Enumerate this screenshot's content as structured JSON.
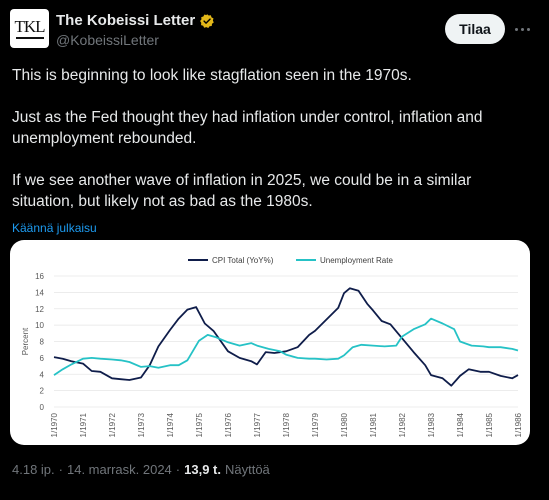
{
  "author": {
    "display_name": "The Kobeissi Letter",
    "handle": "@KobeissiLetter",
    "avatar_text": "TKL"
  },
  "header": {
    "follow_label": "Tilaa",
    "more_icon": "more-horizontal-icon"
  },
  "tweet": {
    "paragraphs": [
      "This is beginning to look like stagflation seen in the 1970s.",
      "Just as the Fed thought they had inflation under control, inflation and unemployment rebounded.",
      "If we see another wave of inflation in 2025, we could be in a similar situation, but likely not as bad as the 1980s."
    ],
    "translate_label": "Käännä julkaisu"
  },
  "meta": {
    "time": "4.18 ip.",
    "separator": "·",
    "date": "14. marrask. 2024",
    "separator2": "·",
    "views_count": "13,9 t.",
    "views_label": "Näyttöä"
  },
  "colors": {
    "cpi": "#0f1d4a",
    "unemployment": "#26c2c6",
    "link": "#1d9bf0"
  },
  "chart_data": {
    "type": "line",
    "ylabel": "Percent",
    "ylim": [
      0,
      16
    ],
    "yticks": [
      0,
      2,
      4,
      6,
      8,
      10,
      12,
      14,
      16
    ],
    "xlim": [
      1970,
      1986
    ],
    "xticks": [
      "1/1970",
      "1/1971",
      "1/1972",
      "1/1973",
      "1/1974",
      "1/1975",
      "1/1976",
      "1/1977",
      "1/1978",
      "1/1979",
      "1/1980",
      "1/1981",
      "1/1982",
      "1/1983",
      "1/1984",
      "1/1985",
      "1/1986"
    ],
    "legend_position": "top",
    "grid": "horizontal",
    "series": [
      {
        "name": "CPI Total (YoY%)",
        "x": [
          1970,
          1970.3,
          1970.6,
          1971,
          1971.3,
          1971.6,
          1972,
          1972.3,
          1972.6,
          1973,
          1973.3,
          1973.6,
          1974,
          1974.3,
          1974.6,
          1974.9,
          1975.2,
          1975.5,
          1976,
          1976.4,
          1976.8,
          1977,
          1977.3,
          1977.6,
          1978,
          1978.4,
          1978.8,
          1979,
          1979.4,
          1979.8,
          1980,
          1980.2,
          1980.5,
          1980.8,
          1981,
          1981.3,
          1981.6,
          1982,
          1982.4,
          1982.8,
          1983,
          1983.4,
          1983.7,
          1984,
          1984.3,
          1984.7,
          1985,
          1985.4,
          1985.8,
          1986
        ],
        "values": [
          6.1,
          5.9,
          5.6,
          5.3,
          4.4,
          4.3,
          3.5,
          3.4,
          3.3,
          3.6,
          5.1,
          7.4,
          9.4,
          10.8,
          11.9,
          12.2,
          10.2,
          9.3,
          6.8,
          6.0,
          5.6,
          5.2,
          6.7,
          6.6,
          6.8,
          7.3,
          8.8,
          9.3,
          10.7,
          12.1,
          13.9,
          14.5,
          14.2,
          12.6,
          11.8,
          10.5,
          10.1,
          8.4,
          6.7,
          5.1,
          3.9,
          3.5,
          2.6,
          3.8,
          4.6,
          4.3,
          4.3,
          3.8,
          3.5,
          3.9
        ]
      },
      {
        "name": "Unemployment Rate",
        "x": [
          1970,
          1970.3,
          1970.6,
          1971,
          1971.3,
          1971.6,
          1972,
          1972.3,
          1972.6,
          1973,
          1973.3,
          1973.6,
          1974,
          1974.3,
          1974.6,
          1975,
          1975.3,
          1975.6,
          1976,
          1976.4,
          1976.8,
          1977,
          1977.4,
          1977.8,
          1978,
          1978.4,
          1978.8,
          1979,
          1979.4,
          1979.8,
          1980,
          1980.3,
          1980.6,
          1981,
          1981.4,
          1981.8,
          1982,
          1982.4,
          1982.8,
          1983,
          1983.4,
          1983.8,
          1984,
          1984.4,
          1984.8,
          1985,
          1985.4,
          1985.8,
          1986
        ],
        "values": [
          3.9,
          4.6,
          5.2,
          5.9,
          6.0,
          5.9,
          5.8,
          5.7,
          5.5,
          4.9,
          5.0,
          4.8,
          5.1,
          5.1,
          5.7,
          8.1,
          8.8,
          8.5,
          7.9,
          7.5,
          7.8,
          7.5,
          7.1,
          6.8,
          6.4,
          6.0,
          5.9,
          5.9,
          5.8,
          5.9,
          6.3,
          7.3,
          7.6,
          7.5,
          7.4,
          7.5,
          8.6,
          9.5,
          10.1,
          10.8,
          10.2,
          9.5,
          8.0,
          7.5,
          7.4,
          7.3,
          7.3,
          7.1,
          6.9
        ]
      }
    ]
  }
}
